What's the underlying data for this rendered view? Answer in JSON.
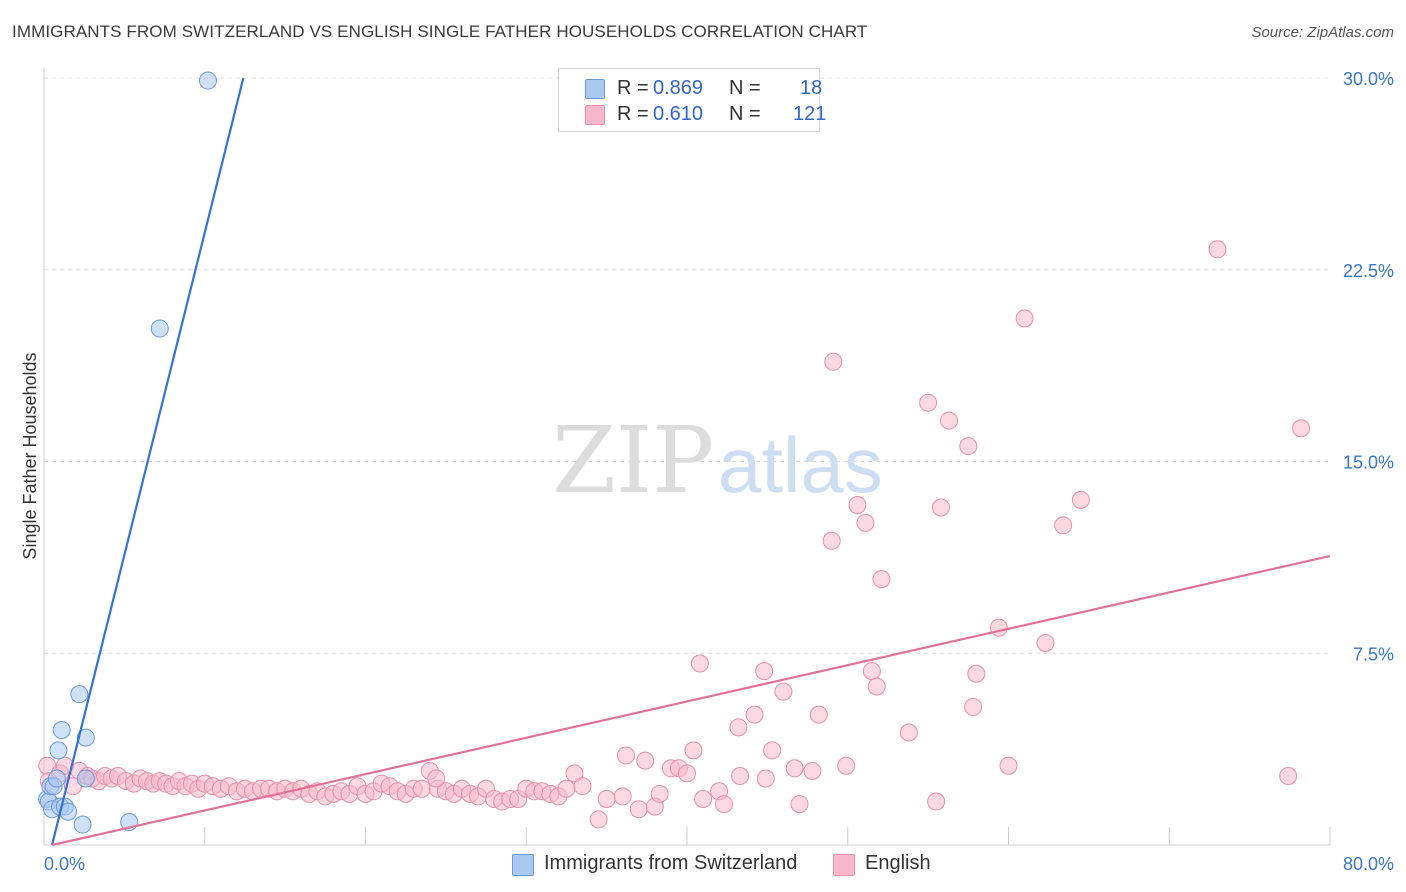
{
  "title": "IMMIGRANTS FROM SWITZERLAND VS ENGLISH SINGLE FATHER HOUSEHOLDS CORRELATION CHART",
  "source": "Source: ZipAtlas.com",
  "watermark": {
    "zip": "ZIP",
    "atlas": "atlas"
  },
  "legend": {
    "rows": [
      {
        "r_label": "R =",
        "r_value": "0.869",
        "n_label": "N =",
        "n_value": "18",
        "color": "#aac8f0",
        "stroke": "#6b9ad8"
      },
      {
        "r_label": "R =",
        "r_value": "0.610",
        "n_label": "N =",
        "n_value": "121",
        "color": "#f7b8cb",
        "stroke": "#e890aa"
      }
    ]
  },
  "bottom_legend": [
    {
      "label": "Immigrants from Switzerland",
      "color": "#aac8f0",
      "stroke": "#6b9ad8"
    },
    {
      "label": "English",
      "color": "#f7b8cb",
      "stroke": "#e890aa"
    }
  ],
  "chart_data": {
    "type": "scatter",
    "xlabel": "",
    "ylabel": "Single Father Households",
    "xlim": [
      0,
      80
    ],
    "ylim": [
      0,
      30
    ],
    "x_tick_labels": [
      "0.0%",
      "80.0%"
    ],
    "y_tick_labels": [
      "7.5%",
      "15.0%",
      "22.5%",
      "30.0%"
    ],
    "y_ticks": [
      7.5,
      15,
      22.5,
      30
    ],
    "grid": true,
    "legend_placement": "top-center",
    "series": [
      {
        "name": "Immigrants from Switzerland",
        "color": "#aac8f0",
        "stroke": "#6b9ad8",
        "line_color": "#3374d0",
        "trend": {
          "x": [
            0.5,
            12.4
          ],
          "y": [
            0,
            30
          ]
        },
        "points": [
          [
            0.2,
            1.8
          ],
          [
            0.3,
            1.7
          ],
          [
            0.4,
            2.3
          ],
          [
            0.5,
            1.4
          ],
          [
            0.6,
            2.3
          ],
          [
            0.8,
            2.6
          ],
          [
            0.9,
            3.7
          ],
          [
            1.0,
            1.5
          ],
          [
            1.1,
            4.5
          ],
          [
            1.3,
            1.5
          ],
          [
            1.5,
            1.3
          ],
          [
            2.2,
            5.9
          ],
          [
            2.4,
            0.8
          ],
          [
            2.6,
            4.2
          ],
          [
            2.6,
            2.6
          ],
          [
            5.3,
            0.9
          ],
          [
            7.2,
            20.2
          ],
          [
            10.2,
            29.9
          ]
        ]
      },
      {
        "name": "English",
        "color": "#f7b8cb",
        "stroke": "#e890aa",
        "line_color": "#e0729a",
        "trend": {
          "x": [
            0.5,
            80
          ],
          "y": [
            0,
            11.3
          ]
        },
        "points": [
          [
            0.2,
            3.1
          ],
          [
            0.3,
            2.5
          ],
          [
            1.0,
            2.8
          ],
          [
            1.3,
            3.1
          ],
          [
            1.8,
            2.3
          ],
          [
            2.2,
            2.9
          ],
          [
            2.7,
            2.7
          ],
          [
            3.0,
            2.6
          ],
          [
            3.4,
            2.5
          ],
          [
            3.8,
            2.7
          ],
          [
            4.2,
            2.6
          ],
          [
            4.6,
            2.7
          ],
          [
            5.1,
            2.5
          ],
          [
            5.6,
            2.4
          ],
          [
            6.0,
            2.6
          ],
          [
            6.4,
            2.5
          ],
          [
            6.8,
            2.4
          ],
          [
            7.2,
            2.5
          ],
          [
            7.6,
            2.4
          ],
          [
            8.0,
            2.3
          ],
          [
            8.4,
            2.5
          ],
          [
            8.8,
            2.3
          ],
          [
            9.2,
            2.4
          ],
          [
            9.6,
            2.2
          ],
          [
            10.0,
            2.4
          ],
          [
            10.5,
            2.3
          ],
          [
            11.0,
            2.2
          ],
          [
            11.5,
            2.3
          ],
          [
            12.0,
            2.1
          ],
          [
            12.5,
            2.2
          ],
          [
            13.0,
            2.1
          ],
          [
            13.5,
            2.2
          ],
          [
            14.0,
            2.2
          ],
          [
            14.5,
            2.1
          ],
          [
            15.0,
            2.2
          ],
          [
            15.5,
            2.1
          ],
          [
            16.0,
            2.2
          ],
          [
            16.5,
            2.0
          ],
          [
            17.0,
            2.1
          ],
          [
            17.5,
            1.9
          ],
          [
            18.0,
            2.0
          ],
          [
            18.5,
            2.1
          ],
          [
            19.0,
            2.0
          ],
          [
            19.5,
            2.3
          ],
          [
            20.0,
            2.0
          ],
          [
            20.5,
            2.1
          ],
          [
            21.0,
            2.4
          ],
          [
            21.5,
            2.3
          ],
          [
            22.0,
            2.1
          ],
          [
            22.5,
            2.0
          ],
          [
            23.0,
            2.2
          ],
          [
            23.5,
            2.2
          ],
          [
            24.0,
            2.9
          ],
          [
            24.5,
            2.2
          ],
          [
            25.0,
            2.1
          ],
          [
            25.5,
            2.0
          ],
          [
            26.0,
            2.2
          ],
          [
            26.5,
            2.0
          ],
          [
            27.0,
            1.9
          ],
          [
            27.5,
            2.2
          ],
          [
            28.0,
            1.8
          ],
          [
            28.5,
            1.7
          ],
          [
            29.0,
            1.8
          ],
          [
            29.5,
            1.8
          ],
          [
            30.0,
            2.2
          ],
          [
            30.5,
            2.1
          ],
          [
            31.0,
            2.1
          ],
          [
            31.5,
            2.0
          ],
          [
            32.0,
            1.9
          ],
          [
            32.5,
            2.2
          ],
          [
            33.0,
            2.8
          ],
          [
            33.5,
            2.3
          ],
          [
            34.5,
            1.0
          ],
          [
            35.0,
            1.8
          ],
          [
            36.0,
            1.9
          ],
          [
            37.0,
            1.4
          ],
          [
            36.2,
            3.5
          ],
          [
            37.4,
            3.3
          ],
          [
            38.0,
            1.5
          ],
          [
            38.3,
            2.0
          ],
          [
            39.0,
            3.0
          ],
          [
            39.5,
            3.0
          ],
          [
            40.0,
            2.8
          ],
          [
            40.4,
            3.7
          ],
          [
            40.8,
            7.1
          ],
          [
            41.0,
            1.8
          ],
          [
            42.0,
            2.1
          ],
          [
            42.3,
            1.6
          ],
          [
            43.2,
            4.6
          ],
          [
            43.3,
            2.7
          ],
          [
            44.2,
            5.1
          ],
          [
            44.8,
            6.8
          ],
          [
            44.9,
            2.6
          ],
          [
            45.3,
            3.7
          ],
          [
            46.0,
            6.0
          ],
          [
            46.7,
            3.0
          ],
          [
            47.0,
            1.6
          ],
          [
            47.8,
            2.9
          ],
          [
            48.2,
            5.1
          ],
          [
            49.0,
            11.9
          ],
          [
            49.1,
            18.9
          ],
          [
            49.9,
            3.1
          ],
          [
            50.6,
            13.3
          ],
          [
            51.1,
            12.6
          ],
          [
            51.5,
            6.8
          ],
          [
            51.8,
            6.2
          ],
          [
            52.1,
            10.4
          ],
          [
            53.8,
            4.4
          ],
          [
            55.0,
            17.3
          ],
          [
            55.5,
            1.7
          ],
          [
            55.8,
            13.2
          ],
          [
            56.3,
            16.6
          ],
          [
            57.5,
            15.6
          ],
          [
            57.8,
            5.4
          ],
          [
            58.0,
            6.7
          ],
          [
            59.4,
            8.5
          ],
          [
            60.0,
            3.1
          ],
          [
            61.0,
            20.6
          ],
          [
            62.3,
            7.9
          ],
          [
            63.4,
            12.5
          ],
          [
            64.5,
            13.5
          ],
          [
            73.0,
            23.3
          ],
          [
            77.4,
            2.7
          ],
          [
            78.2,
            16.3
          ],
          [
            24.4,
            2.6
          ]
        ]
      }
    ]
  }
}
